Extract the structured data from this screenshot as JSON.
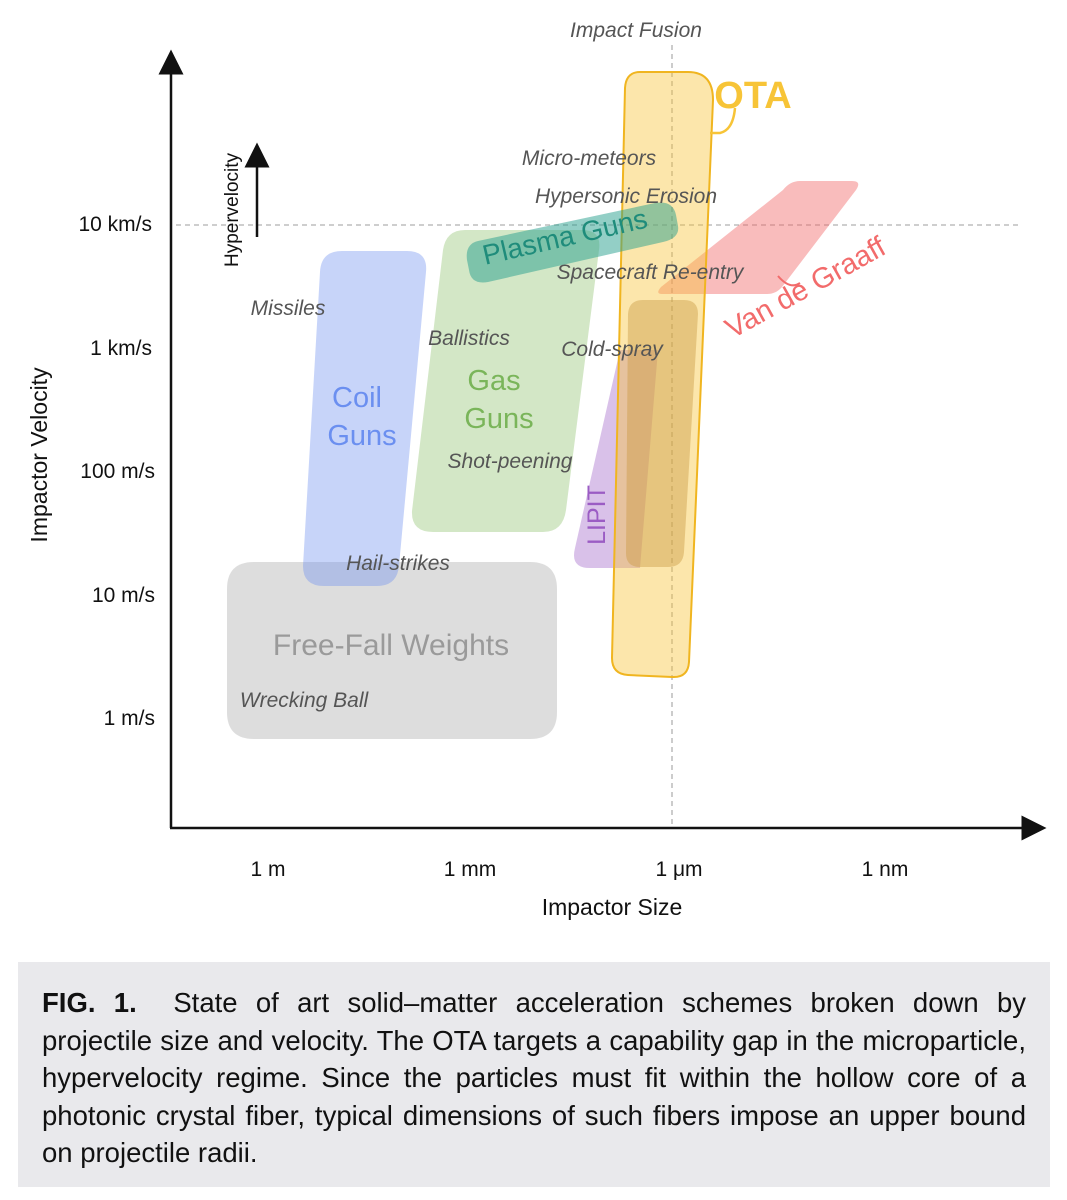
{
  "title": "Impact Fusion",
  "x_axis": {
    "label": "Impactor Size",
    "ticks": [
      "1 m",
      "1 mm",
      "1 μm",
      "1 nm"
    ]
  },
  "y_axis": {
    "label": "Impactor Velocity",
    "ticks": [
      "1 m/s",
      "10 m/s",
      "100 m/s",
      "1 km/s",
      "10 km/s"
    ]
  },
  "hypervelocity_label": "Hypervelocity",
  "regions": {
    "ota": {
      "label": "OTA",
      "color": "#f7c437"
    },
    "coil_guns": {
      "label_line1": "Coil",
      "label_line2": "Guns",
      "color": "#6b8ff0"
    },
    "gas_guns": {
      "label_line1": "Gas",
      "label_line2": "Guns",
      "color": "#8cc06a"
    },
    "plasma_guns": {
      "label": "Plasma Guns",
      "color": "#27a08e"
    },
    "van_de_graaff": {
      "label": "Van de Graaff",
      "color": "#f26b6b"
    },
    "lipit": {
      "label": "LIPIT",
      "color": "#9b5cc4"
    },
    "free_fall": {
      "label": "Free-Fall Weights",
      "color": "#b3b3b3"
    }
  },
  "annotations": {
    "micro_meteors": "Micro-meteors",
    "hypersonic_erosion": "Hypersonic Erosion",
    "spacecraft_reentry": "Spacecraft Re-entry",
    "missiles": "Missiles",
    "ballistics": "Ballistics",
    "cold_spray": "Cold-spray",
    "shot_peening": "Shot-peening",
    "hail_strikes": "Hail-strikes",
    "wrecking_ball": "Wrecking Ball"
  },
  "caption": {
    "label": "FIG. 1.",
    "text": "State of art solid–matter acceleration schemes broken down by projectile size and velocity. The OTA targets a capability gap in the microparticle, hypervelocity regime. Since the particles must fit within the hollow core of a photonic crystal fiber, typical dimensions of such fibers impose an upper bound on projectile radii."
  }
}
